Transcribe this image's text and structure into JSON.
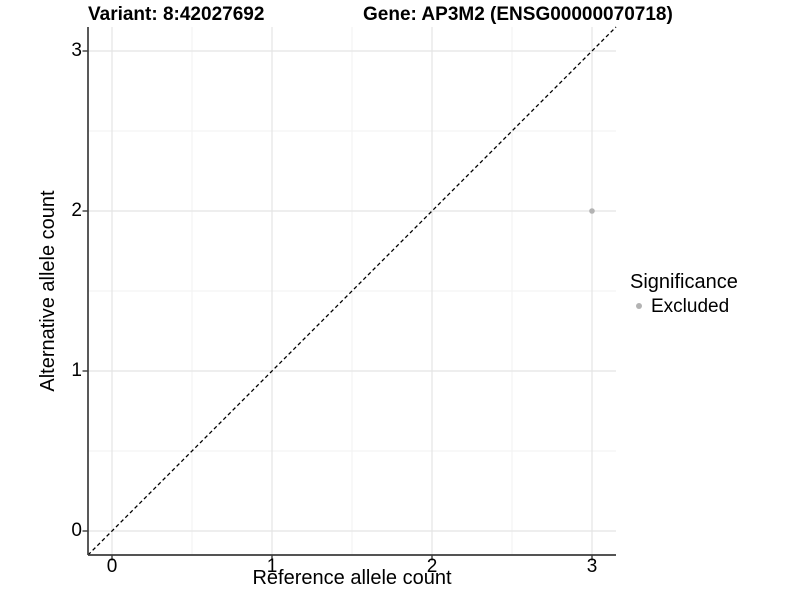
{
  "chart_data": {
    "type": "scatter",
    "titles": {
      "left": "Variant: 8:42027692",
      "right": "Gene: AP3M2 (ENSG00000070718)"
    },
    "xlabel": "Reference allele count",
    "ylabel": "Alternative allele count",
    "xlim": [
      -0.15,
      3.15
    ],
    "ylim": [
      -0.15,
      3.15
    ],
    "x_ticks": [
      0,
      1,
      2,
      3
    ],
    "y_ticks": [
      0,
      1,
      2,
      3
    ],
    "x_minor_ticks": [
      0.5,
      1.5,
      2.5
    ],
    "y_minor_ticks": [
      0.5,
      1.5,
      2.5
    ],
    "grid": "on",
    "series": [
      {
        "name": "Excluded",
        "points": [
          {
            "x": 3,
            "y": 2
          }
        ],
        "color": "#b3b3b3"
      }
    ],
    "identity_line": {
      "slope": 1,
      "intercept": 0,
      "style": "dashed",
      "color": "#000000"
    },
    "legend": {
      "title": "Significance",
      "position": "right",
      "entries": [
        {
          "label": "Excluded",
          "color": "#b3b3b3"
        }
      ]
    },
    "colors": {
      "background": "#ffffff",
      "major_grid": "#e4e4e4",
      "minor_grid": "#f2f2f2",
      "axis_line": "#3c3c3c",
      "point": "#b3b3b3",
      "text": "#000000"
    }
  }
}
